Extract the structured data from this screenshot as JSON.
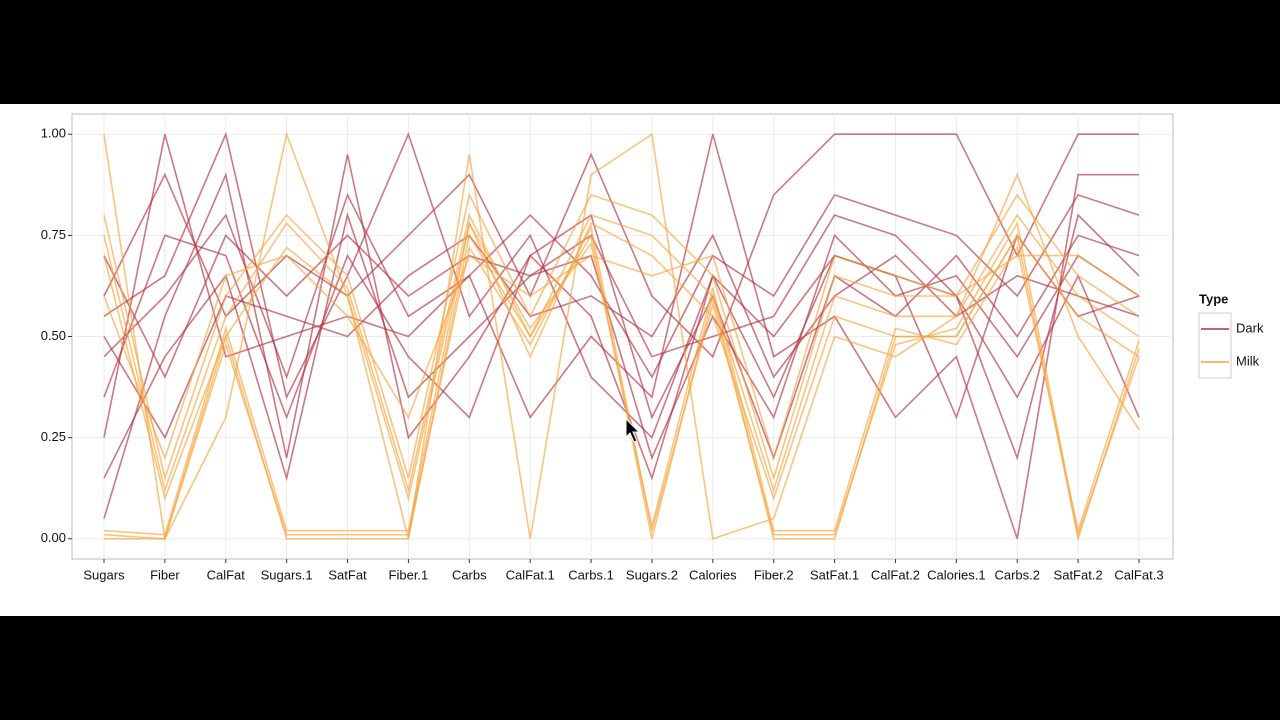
{
  "chart_data": {
    "type": "parallel",
    "categories": [
      "Sugars",
      "Fiber",
      "CalFat",
      "Sugars.1",
      "SatFat",
      "Fiber.1",
      "Carbs",
      "CalFat.1",
      "Carbs.1",
      "Sugars.2",
      "Calories",
      "Fiber.2",
      "SatFat.1",
      "CalFat.2",
      "Calories.1",
      "Carbs.2",
      "SatFat.2",
      "CalFat.3"
    ],
    "ylim": [
      -0.05,
      1.05
    ],
    "yticks": [
      {
        "value": 0,
        "label": "0.00"
      },
      {
        "value": 0.25,
        "label": "0.25"
      },
      {
        "value": 0.5,
        "label": "0.50"
      },
      {
        "value": 0.75,
        "label": "0.75"
      },
      {
        "value": 1,
        "label": "1.00"
      }
    ],
    "grid": true,
    "legend_title": "Type",
    "legend_position": "right",
    "groups": [
      {
        "name": "Dark",
        "color": "#b2303f",
        "lines": [
          [
            0.45,
            0.6,
            0.8,
            0.4,
            0.85,
            0.55,
            0.65,
            0.8,
            0.65,
            0.4,
            0.7,
            0.6,
            0.85,
            0.8,
            0.75,
            0.6,
            0.85,
            0.8
          ],
          [
            0.15,
            0.45,
            0.65,
            0.15,
            0.8,
            0.35,
            0.5,
            0.65,
            0.7,
            0.2,
            0.55,
            0.3,
            0.75,
            0.6,
            0.65,
            0.45,
            0.7,
            0.6
          ],
          [
            0.6,
            0.9,
            0.55,
            0.7,
            0.6,
            0.75,
            0.9,
            0.6,
            0.95,
            0.6,
            0.45,
            0.85,
            1.0,
            1.0,
            1.0,
            0.7,
            1.0,
            1.0
          ],
          [
            0.35,
            0.75,
            0.7,
            0.3,
            0.7,
            0.45,
            0.3,
            0.7,
            0.55,
            0.15,
            0.65,
            0.5,
            0.7,
            0.65,
            0.6,
            0.2,
            0.8,
            0.65
          ],
          [
            0.5,
            0.25,
            0.6,
            0.55,
            0.5,
            0.65,
            0.75,
            0.55,
            0.6,
            0.5,
            0.75,
            0.4,
            0.6,
            0.7,
            0.55,
            0.65,
            0.6,
            0.55
          ],
          [
            0.05,
            0.55,
            0.9,
            0.2,
            0.95,
            0.25,
            0.45,
            0.7,
            0.8,
            0.3,
            0.6,
            0.2,
            0.65,
            0.55,
            0.7,
            0.5,
            0.75,
            0.7
          ],
          [
            0.7,
            0.4,
            0.75,
            0.6,
            0.75,
            0.6,
            0.7,
            0.65,
            0.75,
            0.45,
            0.5,
            0.55,
            0.8,
            0.75,
            0.6,
            0.35,
            0.65,
            0.3
          ],
          [
            0.25,
            1.0,
            0.45,
            0.5,
            0.55,
            0.5,
            0.65,
            0.3,
            0.5,
            0.35,
            1.0,
            0.45,
            0.55,
            0.3,
            0.45,
            0.0,
            0.9,
            0.9
          ],
          [
            0.55,
            0.65,
            1.0,
            0.35,
            0.65,
            1.0,
            0.55,
            0.75,
            0.4,
            0.25,
            0.65,
            0.35,
            0.7,
            0.65,
            0.3,
            0.75,
            0.55,
            0.6
          ]
        ]
      },
      {
        "name": "Milk",
        "color": "#f7a43c",
        "lines": [
          [
            0.75,
            0.12,
            0.55,
            0.78,
            0.62,
            0.12,
            0.8,
            0.5,
            0.8,
            0.75,
            0.6,
            0.12,
            0.6,
            0.55,
            0.55,
            0.8,
            0.6,
            0.5
          ],
          [
            0.8,
            0.15,
            0.6,
            0.8,
            0.65,
            0.15,
            0.85,
            0.55,
            0.85,
            0.8,
            0.65,
            0.15,
            0.65,
            0.6,
            0.6,
            0.85,
            0.65,
            0.55
          ],
          [
            0.0,
            0.0,
            0.5,
            0.0,
            0.0,
            0.0,
            0.75,
            0.5,
            0.75,
            0.0,
            0.6,
            0.0,
            0.0,
            0.5,
            0.5,
            0.75,
            0.0,
            0.47
          ],
          [
            0.01,
            0.0,
            0.48,
            0.01,
            0.01,
            0.01,
            0.72,
            0.48,
            0.77,
            0.02,
            0.58,
            0.01,
            0.01,
            0.48,
            0.52,
            0.78,
            0.01,
            0.45
          ],
          [
            0.7,
            0.1,
            0.5,
            0.72,
            0.6,
            0.1,
            0.78,
            0.45,
            0.78,
            0.7,
            0.55,
            0.1,
            0.55,
            0.5,
            0.5,
            0.75,
            0.55,
            0.45
          ],
          [
            1.0,
            0.0,
            0.3,
            1.0,
            0.6,
            0.0,
            0.95,
            0.0,
            0.9,
            1.0,
            0.0,
            0.05,
            0.5,
            0.45,
            0.55,
            0.9,
            0.5,
            0.27
          ],
          [
            0.6,
            0.2,
            0.65,
            0.7,
            0.55,
            0.3,
            0.7,
            0.6,
            0.7,
            0.65,
            0.7,
            0.2,
            0.7,
            0.65,
            0.6,
            0.7,
            0.7,
            0.6
          ],
          [
            0.02,
            0.01,
            0.52,
            0.02,
            0.02,
            0.02,
            0.78,
            0.52,
            0.73,
            0.03,
            0.62,
            0.02,
            0.02,
            0.52,
            0.48,
            0.72,
            0.02,
            0.49
          ]
        ]
      }
    ]
  }
}
